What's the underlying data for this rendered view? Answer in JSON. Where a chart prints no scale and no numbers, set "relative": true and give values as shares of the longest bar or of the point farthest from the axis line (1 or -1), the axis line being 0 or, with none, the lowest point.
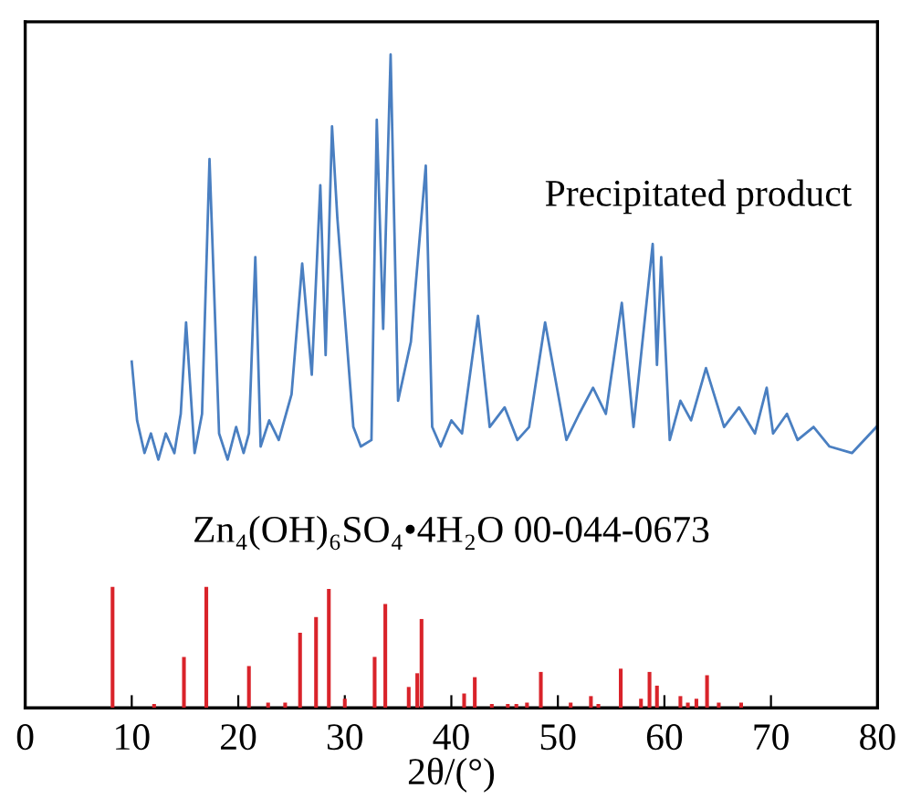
{
  "chart_data": {
    "type": "line",
    "xlabel": "2θ/(°)",
    "relative": true,
    "xlim": [
      0,
      80
    ],
    "xticks": [
      0,
      10,
      20,
      30,
      40,
      50,
      60,
      70,
      80
    ],
    "grid": false,
    "legend": false,
    "series": [
      {
        "name": "Precipitated product",
        "color": "#4a7fc1",
        "x": [
          10.0,
          10.5,
          11.2,
          11.8,
          12.5,
          13.2,
          14.0,
          14.6,
          15.1,
          15.9,
          16.6,
          17.3,
          18.2,
          19.0,
          19.8,
          20.5,
          21.0,
          21.6,
          22.1,
          22.9,
          23.8,
          25.0,
          26.0,
          26.9,
          27.7,
          28.2,
          28.8,
          29.3,
          30.8,
          31.5,
          32.5,
          33.0,
          33.6,
          34.3,
          35.0,
          36.2,
          37.6,
          38.2,
          39.0,
          40.0,
          41.0,
          42.5,
          43.6,
          45.0,
          46.2,
          47.3,
          48.8,
          50.8,
          52.0,
          53.3,
          54.5,
          56.0,
          57.1,
          58.9,
          59.3,
          59.7,
          60.5,
          61.5,
          62.5,
          63.9,
          65.6,
          67.0,
          68.5,
          69.6,
          70.2,
          71.5,
          72.5,
          74.0,
          75.5,
          77.6,
          79.9
        ],
        "values": [
          0.53,
          0.44,
          0.39,
          0.42,
          0.38,
          0.42,
          0.39,
          0.45,
          0.59,
          0.39,
          0.45,
          0.84,
          0.42,
          0.38,
          0.43,
          0.39,
          0.42,
          0.69,
          0.4,
          0.44,
          0.41,
          0.48,
          0.68,
          0.51,
          0.8,
          0.54,
          0.89,
          0.75,
          0.43,
          0.4,
          0.41,
          0.9,
          0.58,
          1.0,
          0.47,
          0.56,
          0.83,
          0.43,
          0.4,
          0.44,
          0.42,
          0.6,
          0.43,
          0.46,
          0.41,
          0.43,
          0.59,
          0.41,
          0.45,
          0.49,
          0.45,
          0.62,
          0.43,
          0.71,
          0.525,
          0.69,
          0.41,
          0.47,
          0.44,
          0.52,
          0.43,
          0.46,
          0.42,
          0.49,
          0.42,
          0.45,
          0.41,
          0.43,
          0.4,
          0.39,
          0.43
        ]
      },
      {
        "name": "Zn₄(OH)₆SO₄•4H₂O 00-044-0673",
        "type": "bar",
        "color": "#d9232a",
        "x": [
          8.2,
          12.1,
          14.9,
          17.0,
          21.0,
          22.8,
          24.4,
          25.8,
          27.3,
          28.5,
          30.0,
          32.8,
          33.8,
          36.0,
          36.8,
          37.2,
          41.2,
          42.2,
          43.8,
          45.3,
          46.1,
          47.1,
          48.4,
          51.2,
          53.1,
          53.8,
          55.9,
          57.8,
          58.6,
          59.3,
          61.5,
          62.2,
          63.0,
          64.0,
          65.1,
          67.2
        ],
        "values": [
          0.185,
          0.006,
          0.078,
          0.185,
          0.064,
          0.008,
          0.008,
          0.115,
          0.139,
          0.182,
          0.014,
          0.078,
          0.159,
          0.032,
          0.053,
          0.136,
          0.022,
          0.047,
          0.006,
          0.006,
          0.006,
          0.008,
          0.055,
          0.008,
          0.018,
          0.006,
          0.06,
          0.014,
          0.055,
          0.034,
          0.018,
          0.008,
          0.014,
          0.05,
          0.008,
          0.008
        ]
      }
    ]
  }
}
